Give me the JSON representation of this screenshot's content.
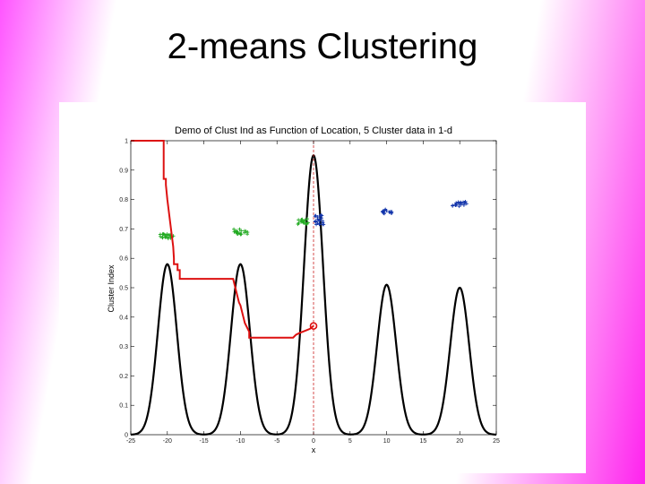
{
  "slide": {
    "title": "2-means Clustering"
  },
  "chart_data": {
    "type": "line",
    "title": "Demo of Clust Ind as Function of Location, 5 Cluster data in 1-d",
    "xlabel": "x",
    "ylabel": "Cluster Index",
    "xlim": [
      -25,
      25
    ],
    "ylim": [
      0,
      1
    ],
    "xticks": [
      -25,
      -20,
      -15,
      -10,
      -5,
      0,
      5,
      10,
      15,
      20,
      25
    ],
    "yticks": [
      0,
      0.1,
      0.2,
      0.3,
      0.4,
      0.5,
      0.6,
      0.7,
      0.8,
      0.9,
      1
    ],
    "tick_labels_x": [
      "-25",
      "-20",
      "-15",
      "-10",
      "-5",
      "0",
      "5",
      "10",
      "15",
      "20",
      "25"
    ],
    "tick_labels_y": [
      "0",
      "0.1",
      "0.2",
      "0.3",
      "0.4",
      "0.5",
      "0.6",
      "0.7",
      "0.8",
      "0.9",
      "1"
    ],
    "split_location": 0,
    "current_ci": 0.37,
    "density": {
      "color": "#000000",
      "centers": [
        -20,
        -10,
        0,
        10,
        20
      ],
      "heights": [
        0.58,
        0.58,
        0.95,
        0.51,
        0.5
      ],
      "sd": 1.3
    },
    "cluster_index_curve": {
      "color": "#dd1111",
      "x": [
        -25,
        -20.5,
        -20.5,
        -20.2,
        -20.2,
        -20,
        -19.8,
        -19.6,
        -19.4,
        -19.2,
        -19.1,
        -19.1,
        -18.6,
        -18.6,
        -18.3,
        -18.3,
        -11,
        -10.8,
        -10.6,
        -10.4,
        -10.2,
        -10,
        -9.8,
        -9.6,
        -9.4,
        -8.8,
        -8.8,
        -2.8,
        -2.4,
        -2,
        -1.5,
        -1,
        -0.5,
        0
      ],
      "y": [
        1,
        1,
        0.87,
        0.87,
        0.85,
        0.8,
        0.76,
        0.72,
        0.68,
        0.64,
        0.6,
        0.58,
        0.58,
        0.56,
        0.56,
        0.53,
        0.53,
        0.51,
        0.49,
        0.47,
        0.45,
        0.44,
        0.42,
        0.4,
        0.38,
        0.35,
        0.33,
        0.33,
        0.34,
        0.345,
        0.35,
        0.355,
        0.36,
        0.37
      ]
    },
    "data_points": [
      {
        "color": "#22aa22",
        "cx": -20,
        "cy": 0.675,
        "sx": 1.0,
        "sy": 0.008,
        "n": 22,
        "seed": 3
      },
      {
        "color": "#22aa22",
        "cx": -10,
        "cy": 0.69,
        "sx": 1.0,
        "sy": 0.01,
        "n": 20,
        "seed": 7
      },
      {
        "color": "#22aa22",
        "cx": -1.4,
        "cy": 0.725,
        "sx": 0.8,
        "sy": 0.01,
        "n": 18,
        "seed": 11
      },
      {
        "color": "#1133aa",
        "cx": 0.8,
        "cy": 0.73,
        "sx": 0.6,
        "sy": 0.018,
        "n": 22,
        "seed": 13
      },
      {
        "color": "#1133aa",
        "cx": 10,
        "cy": 0.76,
        "sx": 0.8,
        "sy": 0.008,
        "n": 14,
        "seed": 17
      },
      {
        "color": "#1133aa",
        "cx": 20,
        "cy": 0.785,
        "sx": 1.0,
        "sy": 0.008,
        "n": 20,
        "seed": 19
      }
    ]
  }
}
